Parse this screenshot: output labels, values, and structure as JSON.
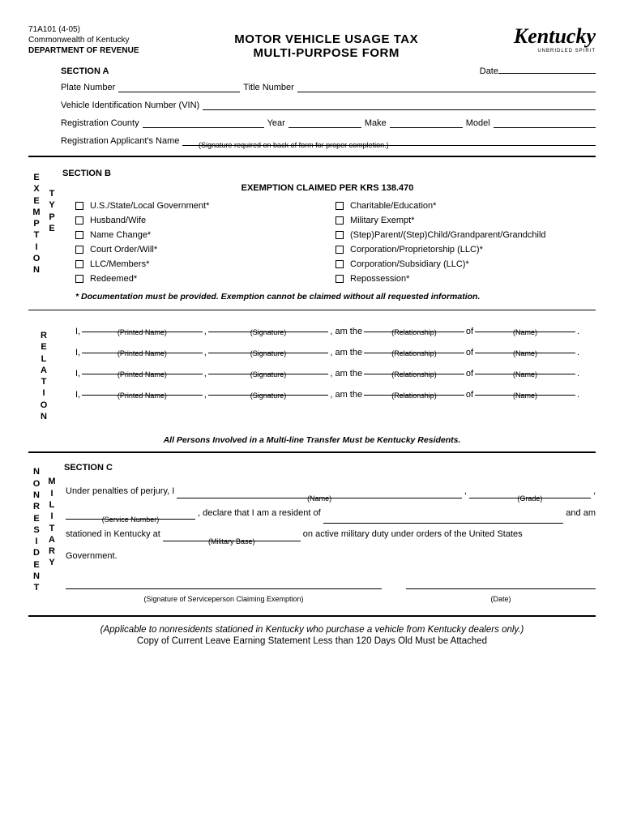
{
  "header": {
    "form_code": "71A101 (4-05)",
    "state_line": "Commonwealth of Kentucky",
    "dept": "DEPARTMENT OF REVENUE",
    "title1": "MOTOR VEHICLE USAGE TAX",
    "title2": "MULTI-PURPOSE FORM",
    "logo_text": "Kentucky",
    "logo_sub": "UNBRIDLED SPIRIT"
  },
  "sectionA": {
    "label": "SECTION A",
    "date_label": "Date",
    "plate_label": "Plate Number",
    "title_label": "Title Number",
    "vin_label": "Vehicle Identification Number (VIN)",
    "county_label": "Registration County",
    "year_label": "Year",
    "make_label": "Make",
    "model_label": "Model",
    "applicant_label": "Registration Applicant's Name",
    "sig_note": "(Signature required on back of form for proper completion.)"
  },
  "sectionB": {
    "label": "SECTION B",
    "side_label": "EXEMPTION",
    "side_label2": "TYPE",
    "title": "EXEMPTION CLAIMED PER KRS 138.470",
    "left_items": [
      "U.S./State/Local Government*",
      "Husband/Wife",
      "Name Change*",
      "Court Order/Will*",
      "LLC/Members*",
      "Redeemed*"
    ],
    "right_items": [
      "Charitable/Education*",
      "Military Exempt*",
      "(Step)Parent/(Step)Child/Grandparent/Grandchild",
      "Corporation/Proprietorship (LLC)*",
      "Corporation/Subsidiary (LLC)*",
      "Repossession*"
    ],
    "doc_note": "* Documentation must be provided. Exemption cannot be claimed without all requested information."
  },
  "relation": {
    "side_label": "RELATION",
    "prefix": "I,",
    "mid": ", am the",
    "of": "of",
    "sub_printed": "(Printed Name)",
    "sub_sig": "(Signature)",
    "sub_rel": "(Relationship)",
    "sub_name": "(Name)",
    "multi_note": "All Persons Involved in a Multi-line Transfer Must be Kentucky Residents."
  },
  "sectionC": {
    "label": "SECTION C",
    "side1": "NONRESIDENT",
    "side2": "MILITARY",
    "line1_pre": "Under penalties of perjury, I",
    "line1_name_sub": "(Name)",
    "line1_grade_sub": "(Grade)",
    "line2_svc_sub": "(Service Number)",
    "line2_mid": ", declare that I am a resident of",
    "line2_end": "and am",
    "line3_pre": "stationed in Kentucky at",
    "line3_base_sub": "(Military Base)",
    "line3_end": "on active military duty under orders of the United States",
    "line4": "Government.",
    "sig_sub": "(Signature of Serviceperson Claiming Exemption)",
    "date_sub": "(Date)"
  },
  "footer": {
    "note1": "(Applicable to nonresidents stationed in Kentucky who purchase a vehicle from Kentucky dealers only.)",
    "note2": "Copy of Current Leave Earning Statement Less than 120 Days Old Must be Attached"
  }
}
